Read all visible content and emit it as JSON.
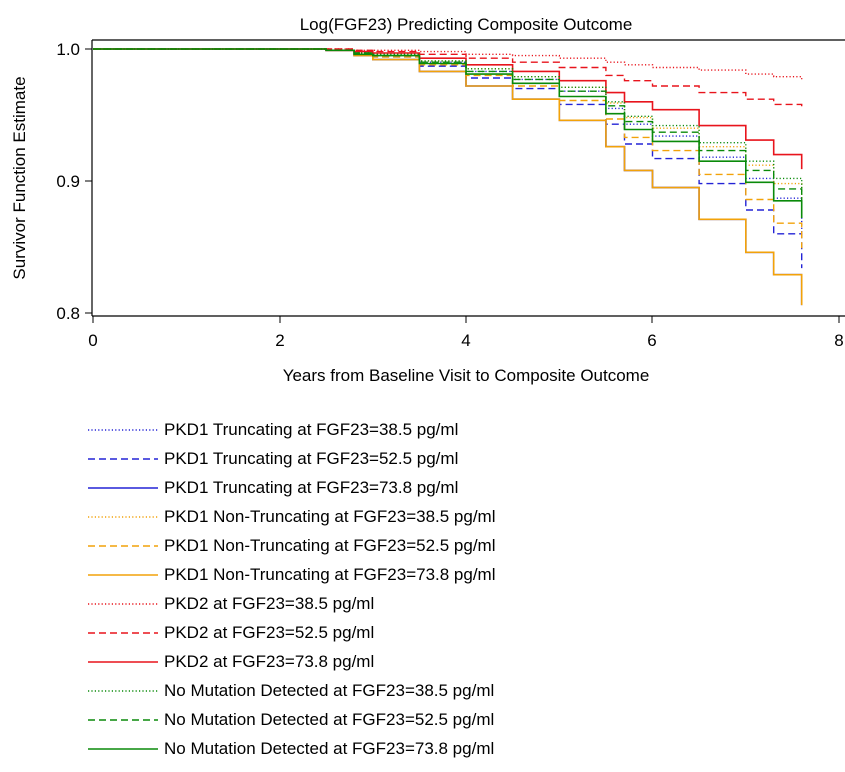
{
  "chart_data": {
    "type": "line",
    "title": "Log(FGF23) Predicting Composite Outcome",
    "xlabel": "Years from Baseline Visit to Composite Outcome",
    "ylabel": "Survivor Function Estimate",
    "xlim": [
      0,
      8
    ],
    "ylim": [
      0.8,
      1.0
    ],
    "xticks": [
      "0",
      "2",
      "4",
      "6",
      "8"
    ],
    "yticks": [
      "0.8",
      "0.9",
      "1.0"
    ],
    "grid": false,
    "legend": "bottom",
    "x": [
      0,
      1.5,
      2,
      2.5,
      2.8,
      3,
      3.5,
      4,
      4.5,
      5,
      5.5,
      5.7,
      6,
      6.5,
      7,
      7.3,
      7.6
    ],
    "series": [
      {
        "name": "PKD1 Truncating at FGF23=38.5 pg/ml",
        "color": "#2323d6",
        "dash": "dotted",
        "values": [
          1.0,
          1.0,
          1.0,
          0.999,
          0.997,
          0.996,
          0.99,
          0.983,
          0.977,
          0.968,
          0.955,
          0.943,
          0.934,
          0.918,
          0.902,
          0.887,
          0.86
        ]
      },
      {
        "name": "PKD1 Truncating at FGF23=52.5 pg/ml",
        "color": "#2323d6",
        "dash": "dashed",
        "values": [
          1.0,
          1.0,
          1.0,
          0.999,
          0.996,
          0.994,
          0.987,
          0.978,
          0.97,
          0.958,
          0.943,
          0.928,
          0.917,
          0.898,
          0.878,
          0.86,
          0.834
        ]
      },
      {
        "name": "PKD1 Truncating at FGF23=73.8 pg/ml",
        "color": "#2323d6",
        "dash": "solid",
        "values": [
          1.0,
          1.0,
          1.0,
          0.999,
          0.995,
          0.992,
          0.983,
          0.972,
          0.962,
          0.946,
          0.926,
          0.908,
          0.895,
          0.871,
          0.846,
          0.829,
          0.806
        ]
      },
      {
        "name": "PKD1 Non-Truncating at FGF23=38.5 pg/ml",
        "color": "#f2a20a",
        "dash": "dotted",
        "values": [
          1.0,
          1.0,
          1.0,
          0.999,
          0.997,
          0.996,
          0.991,
          0.985,
          0.979,
          0.971,
          0.959,
          0.948,
          0.94,
          0.926,
          0.912,
          0.898,
          0.882
        ]
      },
      {
        "name": "PKD1 Non-Truncating at FGF23=52.5 pg/ml",
        "color": "#f2a20a",
        "dash": "dashed",
        "values": [
          1.0,
          1.0,
          1.0,
          0.999,
          0.996,
          0.994,
          0.988,
          0.98,
          0.972,
          0.961,
          0.947,
          0.933,
          0.923,
          0.905,
          0.886,
          0.868,
          0.849
        ]
      },
      {
        "name": "PKD1 Non-Truncating at FGF23=73.8 pg/ml",
        "color": "#f2a20a",
        "dash": "solid",
        "values": [
          1.0,
          1.0,
          1.0,
          0.999,
          0.995,
          0.992,
          0.983,
          0.972,
          0.962,
          0.946,
          0.926,
          0.908,
          0.895,
          0.871,
          0.846,
          0.829,
          0.806
        ]
      },
      {
        "name": "PKD2 at FGF23=38.5 pg/ml",
        "color": "#e8141c",
        "dash": "dotted",
        "values": [
          1.0,
          1.0,
          1.0,
          1.0,
          0.999,
          0.999,
          0.998,
          0.996,
          0.995,
          0.993,
          0.99,
          0.988,
          0.986,
          0.984,
          0.981,
          0.979,
          0.977
        ]
      },
      {
        "name": "PKD2 at FGF23=52.5 pg/ml",
        "color": "#e8141c",
        "dash": "dashed",
        "values": [
          1.0,
          1.0,
          1.0,
          1.0,
          0.999,
          0.998,
          0.996,
          0.993,
          0.99,
          0.986,
          0.98,
          0.976,
          0.972,
          0.967,
          0.962,
          0.958,
          0.954
        ]
      },
      {
        "name": "PKD2 at FGF23=73.8 pg/ml",
        "color": "#e8141c",
        "dash": "solid",
        "values": [
          1.0,
          1.0,
          1.0,
          0.999,
          0.998,
          0.997,
          0.993,
          0.988,
          0.983,
          0.976,
          0.967,
          0.96,
          0.954,
          0.942,
          0.931,
          0.92,
          0.909
        ]
      },
      {
        "name": "No Mutation Detected at FGF23=38.5 pg/ml",
        "color": "#0a8a0a",
        "dash": "dotted",
        "values": [
          1.0,
          1.0,
          1.0,
          0.999,
          0.997,
          0.996,
          0.991,
          0.985,
          0.979,
          0.971,
          0.96,
          0.949,
          0.942,
          0.929,
          0.915,
          0.902,
          0.886
        ]
      },
      {
        "name": "No Mutation Detected at FGF23=52.5 pg/ml",
        "color": "#0a8a0a",
        "dash": "dashed",
        "values": [
          1.0,
          1.0,
          1.0,
          0.999,
          0.997,
          0.995,
          0.99,
          0.983,
          0.977,
          0.968,
          0.957,
          0.945,
          0.937,
          0.923,
          0.908,
          0.894,
          0.879
        ]
      },
      {
        "name": "No Mutation Detected at FGF23=73.8 pg/ml",
        "color": "#0a8a0a",
        "dash": "solid",
        "values": [
          1.0,
          1.0,
          1.0,
          0.999,
          0.996,
          0.995,
          0.989,
          0.981,
          0.974,
          0.964,
          0.951,
          0.939,
          0.93,
          0.915,
          0.899,
          0.885,
          0.872
        ]
      }
    ]
  }
}
